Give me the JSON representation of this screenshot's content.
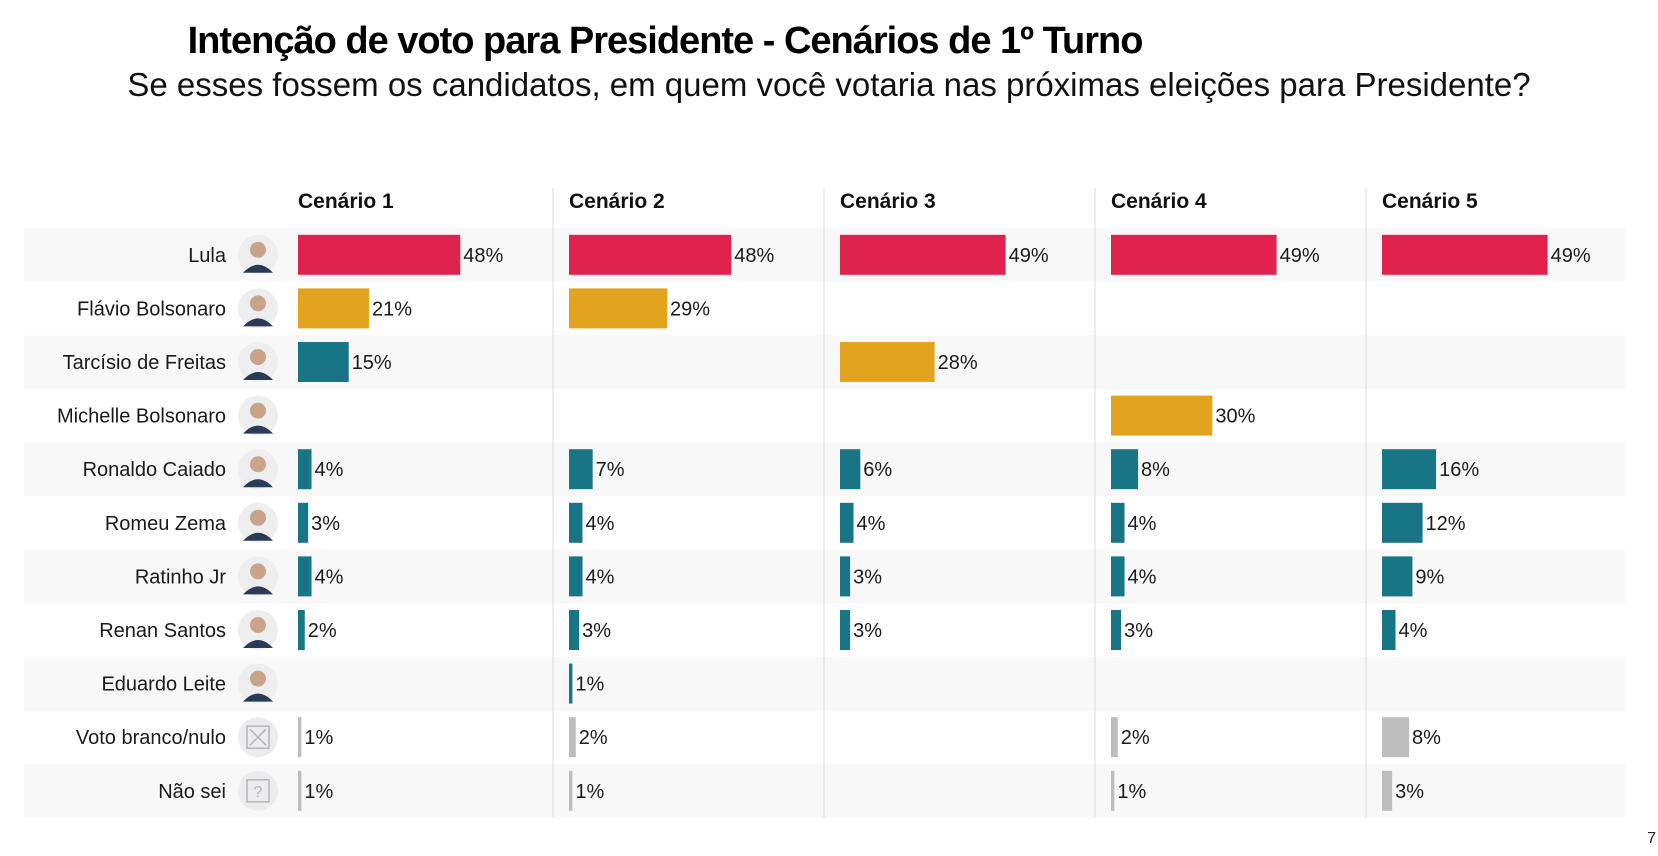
{
  "header": {
    "title": "Intenção de voto para Presidente - Cenários de 1º Turno",
    "subtitle": "Se esses fossem os candidatos, em quem você votaria nas próximas eleições para Presidente?"
  },
  "page_number": "7",
  "colors": {
    "lula": "#e0234e",
    "main_opponent": "#e2a41f",
    "other": "#187585",
    "blank_unknown": "#bdbdbd",
    "band": "#f8f8f8",
    "divider": "#dddddd"
  },
  "chart_data": {
    "type": "bar",
    "orientation": "horizontal",
    "title": "Intenção de voto para Presidente - Cenários de 1º Turno",
    "subtitle": "Se esses fossem os candidatos, em quem você votaria nas próximas eleições para Presidente?",
    "unit": "%",
    "categories": [
      {
        "name": "Lula",
        "icon": "portrait-photo",
        "color_key": "lula"
      },
      {
        "name": "Flávio Bolsonaro",
        "icon": "portrait-photo",
        "color_key": "other"
      },
      {
        "name": "Tarcísio de Freitas",
        "icon": "portrait-photo",
        "color_key": "other"
      },
      {
        "name": "Michelle Bolsonaro",
        "icon": "portrait-photo",
        "color_key": "other"
      },
      {
        "name": "Ronaldo Caiado",
        "icon": "portrait-photo",
        "color_key": "other"
      },
      {
        "name": "Romeu Zema",
        "icon": "portrait-photo",
        "color_key": "other"
      },
      {
        "name": "Ratinho Jr",
        "icon": "portrait-photo",
        "color_key": "other"
      },
      {
        "name": "Renan Santos",
        "icon": "portrait-photo",
        "color_key": "other"
      },
      {
        "name": "Eduardo Leite",
        "icon": "portrait-photo",
        "color_key": "other"
      },
      {
        "name": "Voto branco/nulo",
        "icon": "x-box-icon",
        "color_key": "blank_unknown"
      },
      {
        "name": "Não sei",
        "icon": "question-box-icon",
        "color_key": "blank_unknown"
      }
    ],
    "series": [
      {
        "name": "Cenário 1",
        "values": [
          48,
          21,
          15,
          null,
          4,
          3,
          4,
          2,
          null,
          1,
          1
        ],
        "highlight_index": 1
      },
      {
        "name": "Cenário 2",
        "values": [
          48,
          29,
          null,
          null,
          7,
          4,
          4,
          3,
          1,
          2,
          1
        ],
        "highlight_index": 1
      },
      {
        "name": "Cenário 3",
        "values": [
          49,
          null,
          28,
          null,
          6,
          4,
          3,
          3,
          null,
          null,
          null
        ],
        "highlight_index": 2
      },
      {
        "name": "Cenário 4",
        "values": [
          49,
          null,
          null,
          30,
          8,
          4,
          4,
          3,
          null,
          2,
          1
        ],
        "highlight_index": 3
      },
      {
        "name": "Cenário 5",
        "values": [
          49,
          null,
          null,
          null,
          16,
          12,
          9,
          4,
          null,
          8,
          3
        ],
        "highlight_index": null
      }
    ],
    "value_range": [
      0,
      50
    ],
    "grid": false,
    "legend": "none"
  }
}
